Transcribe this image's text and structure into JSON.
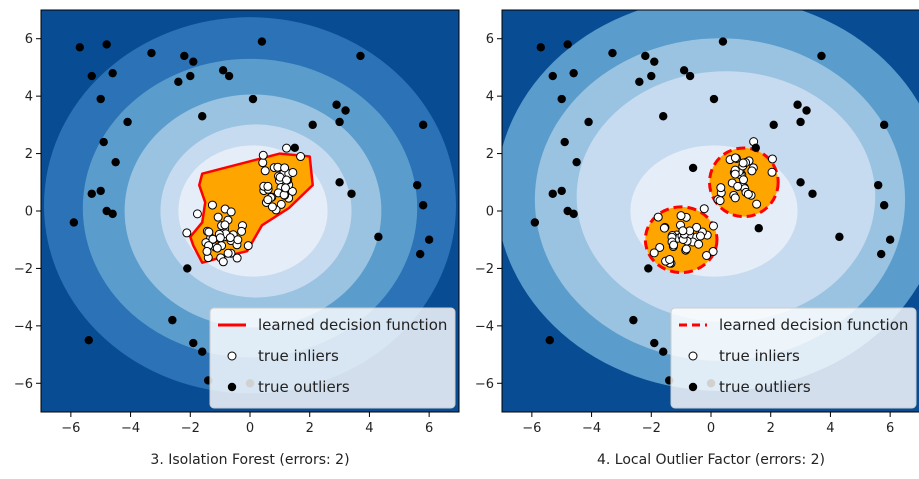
{
  "colors": {
    "band0": "#084c94",
    "band1": "#2b72b6",
    "band2": "#5a9ccc",
    "band3": "#99c3e0",
    "band4": "#c6dbef",
    "band5": "#e5eef8",
    "inside_fill": "#ffa500",
    "decision_line": "#ff0000",
    "legend_bg": "#ffffff"
  },
  "chart_data": [
    {
      "type": "scatter",
      "xlabel": "3. Isolation Forest (errors: 2)",
      "xlim": [
        -7,
        7
      ],
      "ylim": [
        -7,
        7
      ],
      "xticks": [
        -6,
        -4,
        -2,
        0,
        2,
        4,
        6
      ],
      "yticks": [
        -6,
        -4,
        -2,
        0,
        2,
        4,
        6
      ],
      "xtick_labels": [
        "−6",
        "−4",
        "−2",
        "0",
        "2",
        "4",
        "6"
      ],
      "ytick_labels": [
        "−6",
        "−4",
        "−2",
        "0",
        "2",
        "4",
        "6"
      ],
      "decision_line_style": "solid",
      "legend": {
        "placement": "lower-right",
        "entries": [
          "learned decision function",
          "true inliers",
          "true outliers"
        ]
      },
      "outliers": [
        [
          -5.7,
          5.7
        ],
        [
          -5.3,
          4.7
        ],
        [
          -4.8,
          5.8
        ],
        [
          -4.6,
          4.8
        ],
        [
          -5.0,
          3.9
        ],
        [
          -4.1,
          3.1
        ],
        [
          -3.3,
          5.5
        ],
        [
          -2.2,
          5.4
        ],
        [
          -1.9,
          5.2
        ],
        [
          -2.4,
          4.5
        ],
        [
          -2.0,
          4.7
        ],
        [
          -0.9,
          4.9
        ],
        [
          -0.7,
          4.7
        ],
        [
          0.4,
          5.9
        ],
        [
          0.1,
          3.9
        ],
        [
          -1.6,
          3.3
        ],
        [
          -4.9,
          2.4
        ],
        [
          -4.5,
          1.7
        ],
        [
          -5.3,
          0.6
        ],
        [
          -5.0,
          0.7
        ],
        [
          -4.8,
          0.0
        ],
        [
          -4.6,
          -0.1
        ],
        [
          -5.9,
          -0.4
        ],
        [
          1.5,
          2.2
        ],
        [
          2.1,
          3.0
        ],
        [
          2.9,
          3.7
        ],
        [
          3.2,
          3.5
        ],
        [
          3.0,
          3.1
        ],
        [
          3.7,
          5.4
        ],
        [
          5.8,
          3.0
        ],
        [
          3.0,
          1.0
        ],
        [
          3.4,
          0.6
        ],
        [
          5.6,
          0.9
        ],
        [
          5.8,
          0.2
        ],
        [
          6.0,
          -1.0
        ],
        [
          5.7,
          -1.5
        ],
        [
          4.3,
          -0.9
        ],
        [
          -2.1,
          -2.0
        ],
        [
          -2.6,
          -3.8
        ],
        [
          -1.9,
          -4.6
        ],
        [
          -1.6,
          -4.9
        ],
        [
          -1.4,
          -5.9
        ],
        [
          -5.4,
          -4.5
        ],
        [
          0.0,
          -6.0
        ]
      ],
      "inlier_clusters": [
        {
          "center": [
            1.0,
            1.0
          ],
          "count": 35,
          "spread": 0.45
        },
        {
          "center": [
            -1.0,
            -1.0
          ],
          "count": 40,
          "spread": 0.45
        }
      ],
      "decision_polygon": [
        [
          -1.6,
          1.3
        ],
        [
          1.0,
          2.0
        ],
        [
          2.0,
          1.9
        ],
        [
          2.1,
          0.9
        ],
        [
          1.3,
          0.1
        ],
        [
          0.4,
          -0.5
        ],
        [
          -0.1,
          -1.4
        ],
        [
          -0.9,
          -1.6
        ],
        [
          -1.6,
          -1.8
        ],
        [
          -1.9,
          -1.2
        ],
        [
          -2.0,
          -0.9
        ],
        [
          -1.6,
          -0.4
        ],
        [
          -1.5,
          0.3
        ],
        [
          -1.7,
          0.9
        ]
      ]
    },
    {
      "type": "scatter",
      "xlabel": "4. Local Outlier Factor (errors: 2)",
      "xlim": [
        -7,
        7
      ],
      "ylim": [
        -7,
        7
      ],
      "xticks": [
        -6,
        -4,
        -2,
        0,
        2,
        4,
        6
      ],
      "yticks": [
        -6,
        -4,
        -2,
        0,
        2,
        4,
        6
      ],
      "xtick_labels": [
        "−6",
        "−4",
        "−2",
        "0",
        "2",
        "4",
        "6"
      ],
      "ytick_labels": [
        "−6",
        "−4",
        "−2",
        "0",
        "2",
        "4",
        "6"
      ],
      "decision_line_style": "dashed",
      "legend": {
        "placement": "lower-right",
        "entries": [
          "learned decision function",
          "true inliers",
          "true outliers"
        ]
      },
      "outliers": [
        [
          -5.7,
          5.7
        ],
        [
          -5.3,
          4.7
        ],
        [
          -4.8,
          5.8
        ],
        [
          -4.6,
          4.8
        ],
        [
          -5.0,
          3.9
        ],
        [
          -4.1,
          3.1
        ],
        [
          -3.3,
          5.5
        ],
        [
          -2.2,
          5.4
        ],
        [
          -1.9,
          5.2
        ],
        [
          -2.4,
          4.5
        ],
        [
          -2.0,
          4.7
        ],
        [
          -0.9,
          4.9
        ],
        [
          -0.7,
          4.7
        ],
        [
          0.4,
          5.9
        ],
        [
          0.1,
          3.9
        ],
        [
          -1.6,
          3.3
        ],
        [
          -4.9,
          2.4
        ],
        [
          -4.5,
          1.7
        ],
        [
          -5.3,
          0.6
        ],
        [
          -5.0,
          0.7
        ],
        [
          -4.8,
          0.0
        ],
        [
          -4.6,
          -0.1
        ],
        [
          -5.9,
          -0.4
        ],
        [
          1.5,
          2.2
        ],
        [
          2.1,
          3.0
        ],
        [
          2.9,
          3.7
        ],
        [
          3.2,
          3.5
        ],
        [
          3.0,
          3.1
        ],
        [
          3.7,
          5.4
        ],
        [
          5.8,
          3.0
        ],
        [
          3.0,
          1.0
        ],
        [
          3.4,
          0.6
        ],
        [
          5.6,
          0.9
        ],
        [
          5.8,
          0.2
        ],
        [
          6.0,
          -1.0
        ],
        [
          5.7,
          -1.5
        ],
        [
          4.3,
          -0.9
        ],
        [
          -2.1,
          -2.0
        ],
        [
          -2.6,
          -3.8
        ],
        [
          -1.9,
          -4.6
        ],
        [
          -1.6,
          -4.9
        ],
        [
          -1.4,
          -5.9
        ],
        [
          -5.4,
          -4.5
        ],
        [
          0.0,
          -6.0
        ],
        [
          -0.6,
          1.5
        ],
        [
          1.6,
          -0.6
        ]
      ],
      "inlier_clusters": [
        {
          "center": [
            1.0,
            1.0
          ],
          "count": 35,
          "spread": 0.45
        },
        {
          "center": [
            -1.0,
            -1.0
          ],
          "count": 40,
          "spread": 0.45
        }
      ],
      "decision_ellipses": [
        {
          "center": [
            1.1,
            1.0
          ],
          "rx": 1.15,
          "ry": 1.15
        },
        {
          "center": [
            -1.0,
            -1.0
          ],
          "rx": 1.2,
          "ry": 1.1
        }
      ]
    }
  ]
}
